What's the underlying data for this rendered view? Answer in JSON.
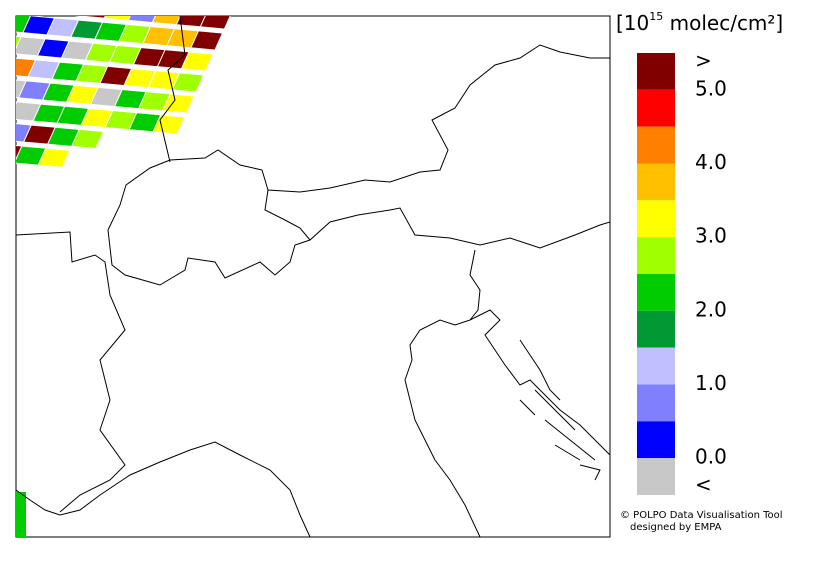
{
  "legend": {
    "unit": {
      "base": "[10",
      "exponent": "15",
      "rest": " molec/cm²]"
    },
    "colors": [
      "#800000",
      "#ff0000",
      "#ff8000",
      "#ffc000",
      "#ffff00",
      "#a0ff00",
      "#00cc00",
      "#009933",
      "#c0c0ff",
      "#8080ff",
      "#0000ff",
      "#c8c8c8"
    ],
    "labels": [
      ">",
      "5.0",
      "4.0",
      "3.0",
      "2.0",
      "1.0",
      "0.0",
      "<"
    ]
  },
  "credit": {
    "line1": "© POLPO Data Visualisation Tool",
    "line2": "designed by EMPA"
  }
}
